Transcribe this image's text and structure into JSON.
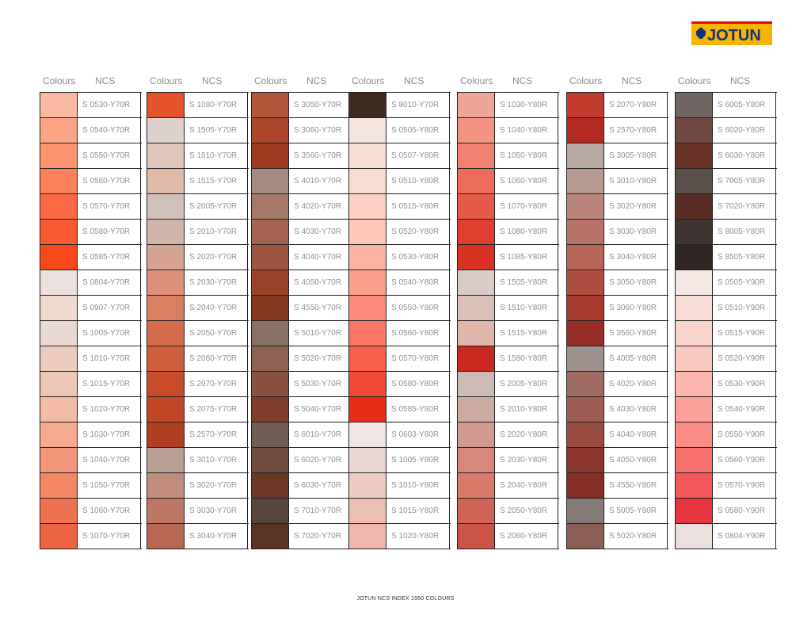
{
  "brand": {
    "name": "JOTUN",
    "colors": {
      "red": "#e30613",
      "yellow": "#f7b500",
      "blue": "#14317f"
    }
  },
  "headers": {
    "colours": "Colours",
    "ncs": "NCS"
  },
  "footer": "JOTUN NCS INDEX 1950 COLOURS",
  "columns": [
    [
      {
        "code": "S 0530-Y70R",
        "color": "#fbb8a0"
      },
      {
        "code": "S 0540-Y70R",
        "color": "#fca486"
      },
      {
        "code": "S 0550-Y70R",
        "color": "#fd946f"
      },
      {
        "code": "S 0560-Y70R",
        "color": "#fc8059"
      },
      {
        "code": "S 0570-Y70R",
        "color": "#fb6a45"
      },
      {
        "code": "S 0580-Y70R",
        "color": "#f9592e"
      },
      {
        "code": "S 0585-Y70R",
        "color": "#f74a18"
      },
      {
        "code": "S 0804-Y70R",
        "color": "#ebe0dd"
      },
      {
        "code": "S 0907-Y70R",
        "color": "#f0d9cd"
      },
      {
        "code": "S 1005-Y70R",
        "color": "#e9d9d2"
      },
      {
        "code": "S 1010-Y70R",
        "color": "#ecccbe"
      },
      {
        "code": "S 1015-Y70R",
        "color": "#efc5b3"
      },
      {
        "code": "S 1020-Y70R",
        "color": "#f1bba4"
      },
      {
        "code": "S 1030-Y70R",
        "color": "#f5ab8e"
      },
      {
        "code": "S 1040-Y70R",
        "color": "#f3977a"
      },
      {
        "code": "S 1050-Y70R",
        "color": "#f48864"
      },
      {
        "code": "S 1060-Y70R",
        "color": "#ef7353"
      },
      {
        "code": "S 1070-Y70R",
        "color": "#ec6441"
      }
    ],
    [
      {
        "code": "S 1080-Y70R",
        "color": "#e5522c"
      },
      {
        "code": "S 1505-Y70R",
        "color": "#dcd1cb"
      },
      {
        "code": "S 1510-Y70R",
        "color": "#dfc4b8"
      },
      {
        "code": "S 1515-Y70R",
        "color": "#e0b9a7"
      },
      {
        "code": "S 2005-Y70R",
        "color": "#cfc0b9"
      },
      {
        "code": "S 2010-Y70R",
        "color": "#d0b5a8"
      },
      {
        "code": "S 2020-Y70R",
        "color": "#d4a491"
      },
      {
        "code": "S 2030-Y70R",
        "color": "#de8f79"
      },
      {
        "code": "S 2040-Y70R",
        "color": "#d98060"
      },
      {
        "code": "S 2050-Y70R",
        "color": "#d76c4c"
      },
      {
        "code": "S 2060-Y70R",
        "color": "#d05d3c"
      },
      {
        "code": "S 2070-Y70R",
        "color": "#c84c2a"
      },
      {
        "code": "S 2075-Y70R",
        "color": "#c34726"
      },
      {
        "code": "S 2570-Y70R",
        "color": "#b03e22"
      },
      {
        "code": "S 3010-Y70R",
        "color": "#b89f91"
      },
      {
        "code": "S 3020-Y70R",
        "color": "#c08d7c"
      },
      {
        "code": "S 3030-Y70R",
        "color": "#bc7865"
      },
      {
        "code": "S 3040-Y70R",
        "color": "#b86852"
      }
    ],
    [
      {
        "code": "S 3050-Y70R",
        "color": "#b1573b"
      },
      {
        "code": "S 3060-Y70R",
        "color": "#ab4629"
      },
      {
        "code": "S 3560-Y70R",
        "color": "#9e3a20"
      },
      {
        "code": "S 4010-Y70R",
        "color": "#a48a80"
      },
      {
        "code": "S 4020-Y70R",
        "color": "#a57868"
      },
      {
        "code": "S 4030-Y70R",
        "color": "#a46450"
      },
      {
        "code": "S 4040-Y70R",
        "color": "#9d5640"
      },
      {
        "code": "S 4050-Y70R",
        "color": "#9a4227"
      },
      {
        "code": "S 4550-Y70R",
        "color": "#873821"
      },
      {
        "code": "S 5010-Y70R",
        "color": "#8a6f64"
      },
      {
        "code": "S 5020-Y70R",
        "color": "#8c6251"
      },
      {
        "code": "S 5030-Y70R",
        "color": "#875340"
      },
      {
        "code": "S 5040-Y70R",
        "color": "#803e2a"
      },
      {
        "code": "S 6010-Y70R",
        "color": "#6f5c52"
      },
      {
        "code": "S 6020-Y70R",
        "color": "#724c3e"
      },
      {
        "code": "S 6030-Y70R",
        "color": "#6a3825"
      },
      {
        "code": "S 7010-Y70R",
        "color": "#59443c"
      },
      {
        "code": "S 7020-Y70R",
        "color": "#5a3325"
      }
    ],
    [
      {
        "code": "S 8010-Y70R",
        "color": "#3f2a1f"
      },
      {
        "code": "S 0505-Y80R",
        "color": "#f4e6df"
      },
      {
        "code": "S 0507-Y80R",
        "color": "#f6e0d6"
      },
      {
        "code": "S 0510-Y80R",
        "color": "#fadbd0"
      },
      {
        "code": "S 0515-Y80R",
        "color": "#fdd1c5"
      },
      {
        "code": "S 0520-Y80R",
        "color": "#fdc8b7"
      },
      {
        "code": "S 0530-Y80R",
        "color": "#fcb3a0"
      },
      {
        "code": "S 0540-Y80R",
        "color": "#fca08c"
      },
      {
        "code": "S 0550-Y80R",
        "color": "#fd8b79"
      },
      {
        "code": "S 0560-Y80R",
        "color": "#fb7664"
      },
      {
        "code": "S 0570-Y80R",
        "color": "#f7614e"
      },
      {
        "code": "S 0580-Y80R",
        "color": "#ef4a36"
      },
      {
        "code": "S 0585-Y80R",
        "color": "#e82c17"
      },
      {
        "code": "S 0603-Y80R",
        "color": "#efe6e3"
      },
      {
        "code": "S 1005-Y80R",
        "color": "#e8d8d1"
      },
      {
        "code": "S 1010-Y80R",
        "color": "#eccbc1"
      },
      {
        "code": "S 1015-Y80R",
        "color": "#ecc0b4"
      },
      {
        "code": "S 1020-Y80R",
        "color": "#edb8a9"
      }
    ],
    [
      {
        "code": "S 1030-Y80R",
        "color": "#eea697"
      },
      {
        "code": "S 1040-Y80R",
        "color": "#f39483"
      },
      {
        "code": "S 1050-Y80R",
        "color": "#f28270"
      },
      {
        "code": "S 1060-Y80R",
        "color": "#ec6c59"
      },
      {
        "code": "S 1070-Y80R",
        "color": "#e55a46"
      },
      {
        "code": "S 1080-Y80R",
        "color": "#df3f2e"
      },
      {
        "code": "S 1085-Y80R",
        "color": "#d73222"
      },
      {
        "code": "S 1505-Y80R",
        "color": "#d9cbc6"
      },
      {
        "code": "S 1510-Y80R",
        "color": "#dcc0b7"
      },
      {
        "code": "S 1515-Y80R",
        "color": "#dfb6a9"
      },
      {
        "code": "S 1580-Y80R",
        "color": "#c92a20"
      },
      {
        "code": "S 2005-Y80R",
        "color": "#cbbab6"
      },
      {
        "code": "S 2010-Y80R",
        "color": "#ccaba2"
      },
      {
        "code": "S 2020-Y80R",
        "color": "#d09b8e"
      },
      {
        "code": "S 2030-Y80R",
        "color": "#d8887a"
      },
      {
        "code": "S 2040-Y80R",
        "color": "#da7a6a"
      },
      {
        "code": "S 2050-Y80R",
        "color": "#d06555"
      },
      {
        "code": "S 2060-Y80R",
        "color": "#cb5447"
      }
    ],
    [
      {
        "code": "S 2070-Y80R",
        "color": "#c13c2e"
      },
      {
        "code": "S 2570-Y80R",
        "color": "#b22a20"
      },
      {
        "code": "S 3005-Y80R",
        "color": "#b7a8a2"
      },
      {
        "code": "S 3010-Y80R",
        "color": "#b69990"
      },
      {
        "code": "S 3020-Y80R",
        "color": "#ba867b"
      },
      {
        "code": "S 3030-Y80R",
        "color": "#b87265"
      },
      {
        "code": "S 3040-Y80R",
        "color": "#b96556"
      },
      {
        "code": "S 3050-Y80R",
        "color": "#ae4e40"
      },
      {
        "code": "S 3060-Y80R",
        "color": "#a63b2d"
      },
      {
        "code": "S 3560-Y80R",
        "color": "#972c26"
      },
      {
        "code": "S 4005-Y80R",
        "color": "#9f918d"
      },
      {
        "code": "S 4020-Y80R",
        "color": "#a06c62"
      },
      {
        "code": "S 4030-Y80R",
        "color": "#9e5e53"
      },
      {
        "code": "S 4040-Y80R",
        "color": "#9a4c40"
      },
      {
        "code": "S 4050-Y80R",
        "color": "#8c362b"
      },
      {
        "code": "S 4550-Y80R",
        "color": "#842e24"
      },
      {
        "code": "S 5005-Y80R",
        "color": "#857b77"
      },
      {
        "code": "S 5020-Y80R",
        "color": "#8b5e55"
      }
    ],
    [
      {
        "code": "S 6005-Y80R",
        "color": "#706562"
      },
      {
        "code": "S 6020-Y80R",
        "color": "#724840"
      },
      {
        "code": "S 6030-Y80R",
        "color": "#6b3428"
      },
      {
        "code": "S 7005-Y80R",
        "color": "#5a4f4b"
      },
      {
        "code": "S 7020-Y80R",
        "color": "#5a2e26"
      },
      {
        "code": "S 8005-Y80R",
        "color": "#3f3431"
      },
      {
        "code": "S 8505-Y80R",
        "color": "#2f2623"
      },
      {
        "code": "S 0505-Y90R",
        "color": "#f5e7e3"
      },
      {
        "code": "S 0510-Y90R",
        "color": "#f9dcd6"
      },
      {
        "code": "S 0515-Y90R",
        "color": "#fad3cc"
      },
      {
        "code": "S 0520-Y90R",
        "color": "#fbc8c0"
      },
      {
        "code": "S 0530-Y90R",
        "color": "#fcb6ad"
      },
      {
        "code": "S 0540-Y90R",
        "color": "#fca199"
      },
      {
        "code": "S 0550-Y90R",
        "color": "#fb8c84"
      },
      {
        "code": "S 0560-Y90R",
        "color": "#f8706b"
      },
      {
        "code": "S 0570-Y90R",
        "color": "#f35757"
      },
      {
        "code": "S 0580-Y90R",
        "color": "#e8343d"
      },
      {
        "code": "S 0804-Y90R",
        "color": "#ece0de"
      }
    ]
  ]
}
